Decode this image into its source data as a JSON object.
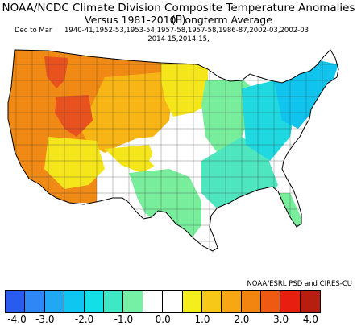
{
  "header": {
    "title": "NOAA/NCDC Climate Division Composite Temperature Anomalies (F)",
    "subtitle": "Versus 1981-2010 Longterm Average",
    "period_label": "Dec to Mar",
    "years_line1": "1940-41,1952-53,1953-54,1957-58,1957-58,1986-87,2002-03,2002-03",
    "years_line2": "2014-15,2014-15,"
  },
  "credit": "NOAA/ESRL PSD and CIRES-CU",
  "legend": {
    "colors": [
      "#2a5bf0",
      "#2f86f5",
      "#21a8f2",
      "#0fc6f0",
      "#12e0e6",
      "#3ee8c4",
      "#76f0a4",
      "#ffffff",
      "#ffffff",
      "#f4ef1c",
      "#f7c818",
      "#f7a713",
      "#f28410",
      "#ef5a12",
      "#e81f10",
      "#b81e10"
    ],
    "tick_labels": [
      "-4.0",
      "-3.0",
      "-2.0",
      "-1.0",
      "0.0",
      "1.0",
      "2.0",
      "3.0",
      "4.0"
    ]
  },
  "map_regions": {
    "colors": {
      "strong_warm": "#e8521f",
      "warm": "#f08a15",
      "mod_warm": "#f7b516",
      "mild_warm": "#f5e61b",
      "neutral": "#ffffff",
      "mild_cool": "#78ee9c",
      "cool": "#4ee6bf",
      "cold": "#1fd8e0",
      "very_cold": "#10c4ee"
    }
  }
}
